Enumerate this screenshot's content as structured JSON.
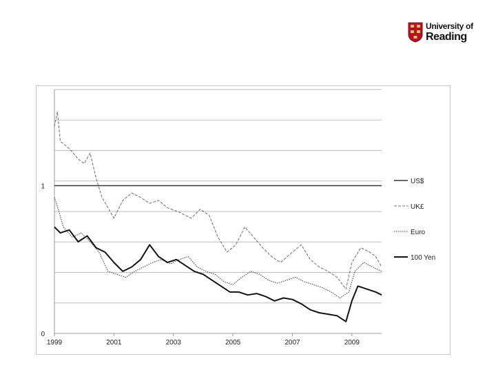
{
  "logo": {
    "line1": "University of",
    "line2": "Reading",
    "colors": {
      "shield": "#b3122a",
      "gold": "#e8c24a"
    }
  },
  "chart_data": {
    "type": "line",
    "title": "",
    "xlabel": "",
    "ylabel": "",
    "x_ticks": [
      "1999",
      "2001",
      "2003",
      "2005",
      "2007",
      "2009"
    ],
    "y_ticks": [
      "0",
      "1"
    ],
    "xlim": [
      1999,
      2010
    ],
    "ylim": [
      0,
      1.65
    ],
    "grid": true,
    "legend_position": "right",
    "series": [
      {
        "name": "US$",
        "style": "solid-medium",
        "color": "#333333",
        "x": [
          1999,
          2010
        ],
        "y": [
          1.0,
          1.0
        ]
      },
      {
        "name": "UK£",
        "style": "dashed",
        "color": "#777777",
        "x": [
          1999,
          1999.1,
          1999.2,
          1999.5,
          1999.8,
          2000.0,
          2000.2,
          2000.4,
          2000.6,
          2000.8,
          2001.0,
          2001.3,
          2001.6,
          2001.9,
          2002.2,
          2002.5,
          2002.8,
          2003.2,
          2003.6,
          2003.9,
          2004.2,
          2004.5,
          2004.8,
          2005.1,
          2005.4,
          2005.7,
          2006.0,
          2006.3,
          2006.6,
          2007.0,
          2007.3,
          2007.6,
          2007.9,
          2008.2,
          2008.5,
          2008.8,
          2009.0,
          2009.3,
          2009.6,
          2009.8,
          2010.0
        ],
        "y": [
          1.4,
          1.5,
          1.3,
          1.25,
          1.18,
          1.15,
          1.22,
          1.05,
          0.92,
          0.85,
          0.78,
          0.9,
          0.95,
          0.92,
          0.88,
          0.9,
          0.85,
          0.82,
          0.78,
          0.84,
          0.8,
          0.65,
          0.55,
          0.6,
          0.72,
          0.65,
          0.58,
          0.52,
          0.48,
          0.55,
          0.6,
          0.5,
          0.45,
          0.42,
          0.38,
          0.3,
          0.48,
          0.58,
          0.55,
          0.52,
          0.45
        ]
      },
      {
        "name": "Euro",
        "style": "dotted",
        "color": "#444444",
        "x": [
          1999,
          1999.1,
          1999.3,
          1999.6,
          1999.9,
          2000.2,
          2000.5,
          2000.8,
          2001.1,
          2001.4,
          2001.7,
          2002.0,
          2002.3,
          2002.6,
          2002.9,
          2003.2,
          2003.5,
          2003.8,
          2004.1,
          2004.4,
          2004.7,
          2005.0,
          2005.3,
          2005.6,
          2005.9,
          2006.2,
          2006.5,
          2006.8,
          2007.1,
          2007.4,
          2007.7,
          2008.0,
          2008.3,
          2008.6,
          2008.9,
          2009.1,
          2009.4,
          2009.7,
          2010.0
        ],
        "y": [
          0.92,
          0.86,
          0.72,
          0.65,
          0.68,
          0.62,
          0.55,
          0.42,
          0.4,
          0.38,
          0.42,
          0.45,
          0.48,
          0.5,
          0.47,
          0.5,
          0.52,
          0.45,
          0.42,
          0.4,
          0.35,
          0.33,
          0.38,
          0.42,
          0.4,
          0.36,
          0.34,
          0.36,
          0.38,
          0.35,
          0.33,
          0.31,
          0.28,
          0.24,
          0.28,
          0.42,
          0.48,
          0.45,
          0.42
        ]
      },
      {
        "name": "100 Yen",
        "style": "solid-bold",
        "color": "#111111",
        "x": [
          1999,
          1999.2,
          1999.5,
          1999.8,
          2000.1,
          2000.4,
          2000.7,
          2001.0,
          2001.3,
          2001.6,
          2001.9,
          2002.2,
          2002.5,
          2002.8,
          2003.1,
          2003.4,
          2003.7,
          2004.0,
          2004.3,
          2004.6,
          2004.9,
          2005.2,
          2005.5,
          2005.8,
          2006.1,
          2006.4,
          2006.7,
          2007.0,
          2007.3,
          2007.6,
          2007.9,
          2008.2,
          2008.5,
          2008.8,
          2009.0,
          2009.2,
          2009.5,
          2009.8,
          2010.0
        ],
        "y": [
          0.72,
          0.68,
          0.7,
          0.62,
          0.66,
          0.58,
          0.55,
          0.48,
          0.42,
          0.45,
          0.5,
          0.6,
          0.52,
          0.48,
          0.5,
          0.46,
          0.42,
          0.4,
          0.36,
          0.32,
          0.28,
          0.28,
          0.26,
          0.27,
          0.25,
          0.22,
          0.24,
          0.23,
          0.2,
          0.16,
          0.14,
          0.13,
          0.12,
          0.08,
          0.22,
          0.32,
          0.3,
          0.28,
          0.26
        ]
      }
    ]
  }
}
